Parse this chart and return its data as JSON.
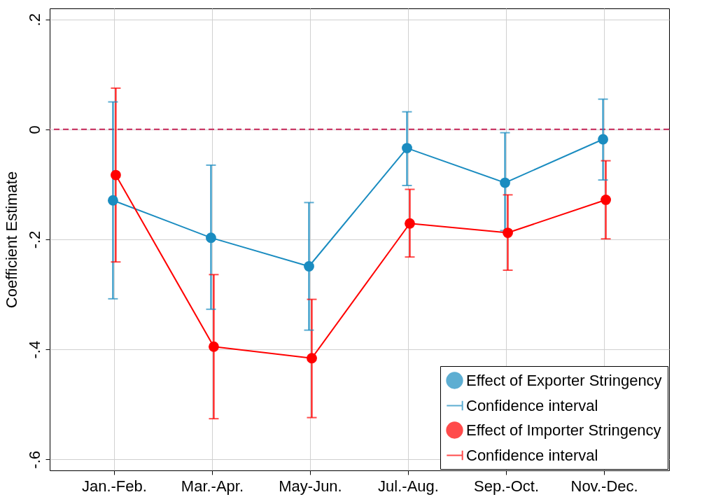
{
  "chart_data": {
    "type": "line",
    "ylabel": "Coefficient Estimate",
    "categories": [
      "Jan.-Feb.",
      "Mar.-Apr.",
      "May-Jun.",
      "Jul.-Aug.",
      "Sep.-Oct.",
      "Nov.-Dec."
    ],
    "series": [
      {
        "name": "Effect of Exporter Stringency",
        "color": "#1a8cc0",
        "values": [
          -0.129,
          -0.197,
          -0.249,
          -0.034,
          -0.097,
          -0.018
        ],
        "errors": [
          [
            -0.308,
            0.05
          ],
          [
            -0.327,
            -0.065
          ],
          [
            -0.365,
            -0.133
          ],
          [
            -0.102,
            0.032
          ],
          [
            -0.184,
            -0.006
          ],
          [
            -0.092,
            0.055
          ]
        ]
      },
      {
        "name": "Effect of Importer Stringency",
        "color": "#ff0000",
        "values": [
          -0.083,
          -0.395,
          -0.416,
          -0.171,
          -0.188,
          -0.128
        ],
        "errors": [
          [
            -0.241,
            0.075
          ],
          [
            -0.526,
            -0.264
          ],
          [
            -0.524,
            -0.309
          ],
          [
            -0.232,
            -0.109
          ],
          [
            -0.256,
            -0.119
          ],
          [
            -0.199,
            -0.057
          ]
        ]
      }
    ],
    "annotations": [
      "Confidence interval",
      "Confidence interval"
    ],
    "ylim": [
      -0.62,
      0.22
    ],
    "yticks": [
      {
        "value": -0.6,
        "label": "-.6"
      },
      {
        "value": -0.4,
        "label": "-.4"
      },
      {
        "value": -0.2,
        "label": "-.2"
      },
      {
        "value": 0,
        "label": "0"
      },
      {
        "value": 0.2,
        "label": ".2"
      }
    ],
    "ref_lines": [
      {
        "axis": "y",
        "value": 0,
        "color": "#c8285a",
        "line_style": "dashed"
      }
    ],
    "grid": true,
    "legend": "bottom right",
    "marker": "circle",
    "line_style": "solid"
  }
}
